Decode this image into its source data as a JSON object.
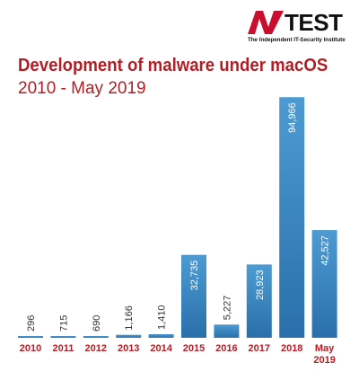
{
  "logo": {
    "brand_text": "TEST",
    "tagline": "The Independent IT-Security Institute",
    "mark_color": "#c8102e"
  },
  "chart_data": {
    "type": "bar",
    "title": "Development of malware under macOS",
    "subtitle": "2010 - May 2019",
    "categories": [
      "2010",
      "2011",
      "2012",
      "2013",
      "2014",
      "2015",
      "2016",
      "2017",
      "2018",
      "May 2019"
    ],
    "category_lines": [
      [
        "2010"
      ],
      [
        "2011"
      ],
      [
        "2012"
      ],
      [
        "2013"
      ],
      [
        "2014"
      ],
      [
        "2015"
      ],
      [
        "2016"
      ],
      [
        "2017"
      ],
      [
        "2018"
      ],
      [
        "May",
        "2019"
      ]
    ],
    "values": [
      296,
      715,
      690,
      1166,
      1410,
      32735,
      5227,
      28923,
      94966,
      42527
    ],
    "value_labels": [
      "296",
      "715",
      "690",
      "1,166",
      "1,410",
      "32,735",
      "5,227",
      "28,923",
      "94,966",
      "42,527"
    ],
    "ylim": [
      0,
      100000
    ],
    "grid": false,
    "legend": "none",
    "colors": {
      "bar_top": "#4d9bd2",
      "bar_bottom": "#2a6fab",
      "text": "#333333",
      "accent": "#b51d24"
    }
  }
}
